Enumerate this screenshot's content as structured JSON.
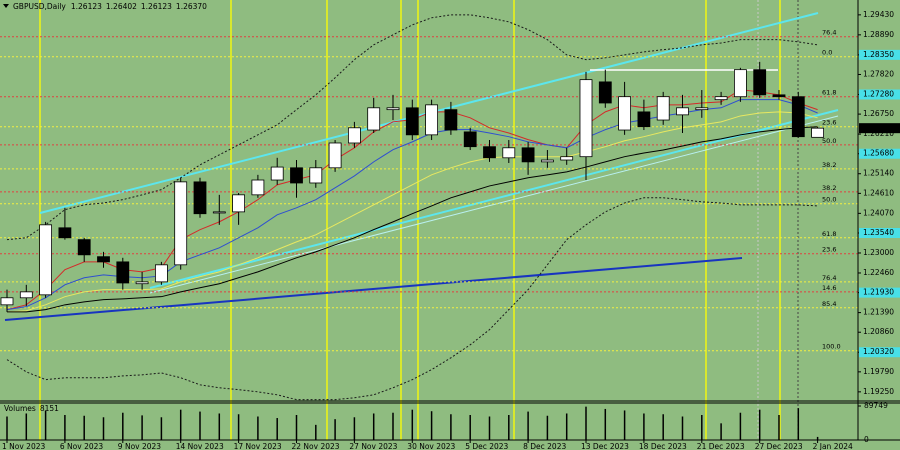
{
  "chart_data": [
    {
      "type": "candlestick",
      "title": "GBPUSD,Daily",
      "header_ohlc": [
        "1.26123",
        "1.26402",
        "1.26123",
        "1.26370"
      ],
      "categories": [
        "1 Nov 2023",
        null,
        null,
        "6 Nov 2023",
        null,
        null,
        "9 Nov 2023",
        null,
        null,
        "14 Nov 2023",
        null,
        null,
        "17 Nov 2023",
        null,
        null,
        "22 Nov 2023",
        null,
        null,
        "27 Nov 2023",
        null,
        null,
        "30 Nov 2023",
        null,
        null,
        "5 Dec 2023",
        null,
        null,
        "8 Dec 2023",
        null,
        null,
        "13 Dec 2023",
        null,
        null,
        "18 Dec 2023",
        null,
        null,
        "21 Dec 2023",
        null,
        null,
        "27 Dec 2023",
        null,
        null,
        "2 Jan 2024"
      ],
      "open": [
        1.216,
        1.2179,
        1.2187,
        1.2368,
        1.2336,
        1.229,
        1.2276,
        1.2217,
        1.2222,
        1.2268,
        1.2492,
        1.2408,
        1.2411,
        1.2457,
        1.2497,
        1.253,
        1.2489,
        1.253,
        1.2597,
        1.2632,
        1.2687,
        1.2692,
        1.2619,
        1.2687,
        1.2627,
        1.2587,
        1.2557,
        1.2584,
        1.2546,
        1.2551,
        1.256,
        1.2762,
        1.2632,
        1.2681,
        1.2659,
        1.2673,
        1.2687,
        1.2714,
        1.2722,
        1.2795,
        1.2727,
        1.2722,
        1.26123
      ],
      "high": [
        1.2201,
        1.2214,
        1.2384,
        1.2422,
        1.2341,
        1.2303,
        1.2287,
        1.2249,
        1.2276,
        1.2503,
        1.2503,
        1.2457,
        1.2462,
        1.2511,
        1.2557,
        1.2551,
        1.2551,
        1.2605,
        1.2654,
        1.2719,
        1.2727,
        1.2714,
        1.2714,
        1.2708,
        1.2638,
        1.2605,
        1.2605,
        1.26,
        1.2578,
        1.2584,
        1.2789,
        1.2795,
        1.2762,
        1.2714,
        1.2735,
        1.2727,
        1.274,
        1.2735,
        1.28,
        1.2816,
        1.274,
        1.2735,
        1.26402
      ],
      "low": [
        1.2141,
        1.2157,
        1.2179,
        1.2336,
        1.2276,
        1.226,
        1.2201,
        1.2201,
        1.2214,
        1.2255,
        1.2395,
        1.2376,
        1.2376,
        1.2449,
        1.2484,
        1.2449,
        1.2476,
        1.2519,
        1.2584,
        1.2624,
        1.2659,
        1.2605,
        1.2605,
        1.2619,
        1.2578,
        1.2546,
        1.2543,
        1.2511,
        1.253,
        1.2538,
        1.2497,
        1.2692,
        1.2619,
        1.2632,
        1.2646,
        1.2624,
        1.2665,
        1.27,
        1.2708,
        1.2719,
        1.2714,
        1.2611,
        1.26123
      ],
      "close": [
        1.2179,
        1.2195,
        1.2376,
        1.2341,
        1.2295,
        1.2276,
        1.2219,
        1.2222,
        1.2268,
        1.2492,
        1.2406,
        1.2411,
        1.2457,
        1.2497,
        1.2532,
        1.2489,
        1.253,
        1.2597,
        1.2638,
        1.2692,
        1.2692,
        1.2619,
        1.27,
        1.2632,
        1.2587,
        1.2557,
        1.2584,
        1.2546,
        1.2551,
        1.256,
        1.2768,
        1.2705,
        1.2722,
        1.2641,
        1.2722,
        1.2692,
        1.2692,
        1.2722,
        1.2795,
        1.2727,
        1.2722,
        1.2614,
        1.2637
      ],
      "up_color": "#ffffff",
      "down_color": "#000000",
      "lines": [
        {
          "color": "#d42a2a",
          "style": "solid",
          "values": [
            1.2147,
            1.216,
            1.2201,
            1.2255,
            1.2276,
            1.2276,
            1.2255,
            1.2249,
            1.226,
            1.2336,
            1.2363,
            1.2384,
            1.2411,
            1.2444,
            1.2484,
            1.2498,
            1.2511,
            1.2552,
            1.2584,
            1.2627,
            1.2654,
            1.266,
            1.2681,
            1.2681,
            1.2665,
            1.2638,
            1.2624,
            1.2606,
            1.2592,
            1.2584,
            1.2646,
            1.2681,
            1.27,
            1.2692,
            1.27,
            1.27,
            1.2705,
            1.2708,
            1.2741,
            1.2735,
            1.2727,
            1.2705,
            1.2687
          ]
        },
        {
          "color": "#2f4fd0",
          "style": "solid",
          "values": [
            1.2147,
            1.2155,
            1.2179,
            1.2214,
            1.2233,
            1.2241,
            1.2236,
            1.2233,
            1.2238,
            1.2276,
            1.2295,
            1.2314,
            1.2341,
            1.2368,
            1.2403,
            1.2422,
            1.2444,
            1.2476,
            1.2508,
            1.2546,
            1.2579,
            1.26,
            1.2624,
            1.2633,
            1.2633,
            1.2624,
            1.2614,
            1.26,
            1.2592,
            1.2584,
            1.2611,
            1.2633,
            1.2651,
            1.266,
            1.267,
            1.2678,
            1.2687,
            1.2692,
            1.2714,
            1.2714,
            1.2714,
            1.27,
            1.2678
          ]
        },
        {
          "color": "#e8e860",
          "style": "solid",
          "values": [
            1.2141,
            1.2144,
            1.216,
            1.2182,
            1.2195,
            1.2201,
            1.2201,
            1.2201,
            1.2203,
            1.2222,
            1.2236,
            1.2249,
            1.2268,
            1.2287,
            1.2309,
            1.233,
            1.2349,
            1.2376,
            1.2403,
            1.243,
            1.2457,
            1.2484,
            1.2511,
            1.253,
            1.2546,
            1.2557,
            1.256,
            1.256,
            1.256,
            1.256,
            1.2573,
            1.2587,
            1.2603,
            1.2614,
            1.2627,
            1.2638,
            1.2646,
            1.2654,
            1.267,
            1.2678,
            1.2681,
            1.2678,
            1.2665
          ]
        },
        {
          "color": "#000000",
          "style": "solid",
          "values": [
            1.2141,
            1.2141,
            1.2147,
            1.216,
            1.2168,
            1.2174,
            1.2176,
            1.2179,
            1.2182,
            1.2195,
            1.2206,
            1.2217,
            1.2233,
            1.2249,
            1.2268,
            1.2287,
            1.2303,
            1.2322,
            1.2341,
            1.2363,
            1.2384,
            1.2406,
            1.2427,
            1.2449,
            1.2465,
            1.2481,
            1.2492,
            1.2503,
            1.2511,
            1.2519,
            1.2532,
            1.2546,
            1.256,
            1.257,
            1.2578,
            1.2589,
            1.26,
            1.2608,
            1.2619,
            1.2627,
            1.2633,
            1.2638,
            1.2641
          ]
        },
        {
          "color": "#1a1a1a",
          "style": "dotted",
          "values": [
            1.2336,
            1.2341,
            1.2376,
            1.2417,
            1.243,
            1.2435,
            1.2444,
            1.2457,
            1.2471,
            1.2503,
            1.2538,
            1.2565,
            1.2592,
            1.2619,
            1.2646,
            1.2687,
            1.2727,
            1.2773,
            1.2822,
            1.2862,
            1.2889,
            1.2916,
            1.2935,
            1.2943,
            1.2943,
            1.2935,
            1.2924,
            1.2903,
            1.2876,
            1.2835,
            1.2822,
            1.2827,
            1.2835,
            1.2843,
            1.2849,
            1.2854,
            1.2862,
            1.2867,
            1.2876,
            1.2876,
            1.2876,
            1.287,
            1.2862
          ]
        },
        {
          "color": "#1a1a1a",
          "style": "dotted",
          "values": [
            1.2012,
            1.1979,
            1.1958,
            1.1963,
            1.1963,
            1.1963,
            1.1968,
            1.1971,
            1.1976,
            1.1963,
            1.1944,
            1.1936,
            1.1931,
            1.1925,
            1.1917,
            1.1904,
            1.1904,
            1.1904,
            1.1909,
            1.1917,
            1.1936,
            1.1958,
            1.1985,
            1.2017,
            1.2052,
            1.2093,
            1.2147,
            1.2201,
            1.2268,
            1.2336,
            1.2376,
            1.2411,
            1.2435,
            1.2449,
            1.2449,
            1.2444,
            1.2438,
            1.2435,
            1.243,
            1.243,
            1.243,
            1.243,
            1.2427
          ]
        }
      ],
      "levels": [
        {
          "label": "76.4",
          "price": 1.2884,
          "color": "#e04040"
        },
        {
          "label": "61.8",
          "price": 1.2722,
          "color": "#e04040"
        },
        {
          "label": "50.0",
          "price": 1.2592,
          "color": "#e04040"
        },
        {
          "label": "38.2",
          "price": 1.2465,
          "color": "#e04040"
        },
        {
          "label": "23.6",
          "price": 1.2298,
          "color": "#e04040"
        },
        {
          "label": "14.6",
          "price": 1.2195,
          "color": "#e04040"
        },
        {
          "label": "0.0",
          "price": 1.283,
          "color": "#f4f040"
        },
        {
          "label": "23.6",
          "price": 1.2641,
          "color": "#f4f040"
        },
        {
          "label": "38.2",
          "price": 1.2527,
          "color": "#f4f040"
        },
        {
          "label": "50.0",
          "price": 1.2433,
          "color": "#f4f040"
        },
        {
          "label": "61.8",
          "price": 1.2341,
          "color": "#f4f040"
        },
        {
          "label": "76.4",
          "price": 1.2222,
          "color": "#f4f040"
        },
        {
          "label": "85.4",
          "price": 1.2152,
          "color": "#f4f040"
        },
        {
          "label": "100.0",
          "price": 1.2036,
          "color": "#f4f040"
        }
      ],
      "ylim": [
        1.1903,
        1.2975
      ],
      "yticks": [
        {
          "value": 1.2943,
          "label": "1.29430"
        },
        {
          "value": 1.2889,
          "label": "1.28890"
        },
        {
          "value": 1.2835,
          "label": "1.28350"
        },
        {
          "value": 1.2782,
          "label": "1.27820"
        },
        {
          "value": 1.2728,
          "label": "1.27280"
        },
        {
          "value": 1.2675,
          "label": "1.26750"
        },
        {
          "value": 1.2621,
          "label": "1.26210"
        },
        {
          "value": 1.2568,
          "label": "1.25680"
        },
        {
          "value": 1.2514,
          "label": "1.25140"
        },
        {
          "value": 1.2461,
          "label": "1.24610"
        },
        {
          "value": 1.2407,
          "label": "1.24070"
        },
        {
          "value": 1.2354,
          "label": "1.23540"
        },
        {
          "value": 1.23,
          "label": "1.23000"
        },
        {
          "value": 1.2246,
          "label": "1.22460"
        },
        {
          "value": 1.2193,
          "label": "1.21930"
        },
        {
          "value": 1.2139,
          "label": "1.21390"
        },
        {
          "value": 1.2086,
          "label": "1.20860"
        },
        {
          "value": 1.2032,
          "label": "1.20320"
        },
        {
          "value": 1.1979,
          "label": "1.19790"
        },
        {
          "value": 1.1925,
          "label": "1.19250"
        }
      ],
      "highlighted_yticks": [
        2,
        4,
        7,
        11,
        14,
        17
      ],
      "highlight_color": "#48e0e8",
      "current_price": {
        "value": 1.2637,
        "label": "1.26370"
      },
      "grid": false
    },
    {
      "type": "bar",
      "title": "Volumes",
      "values": [
        62000,
        70000,
        78000,
        66000,
        64000,
        60000,
        72000,
        65000,
        60000,
        80000,
        75000,
        70000,
        68000,
        62000,
        58000,
        66000,
        40000,
        55000,
        60000,
        70000,
        72000,
        80000,
        76000,
        68000,
        66000,
        62000,
        66000,
        75000,
        64000,
        70000,
        88000,
        82000,
        78000,
        70000,
        68000,
        62000,
        66000,
        44000,
        72000,
        80000,
        66000,
        84000,
        8151
      ],
      "color": "#000000",
      "ylim": [
        0,
        89749
      ],
      "yticks": [
        89749,
        0
      ]
    }
  ]
}
